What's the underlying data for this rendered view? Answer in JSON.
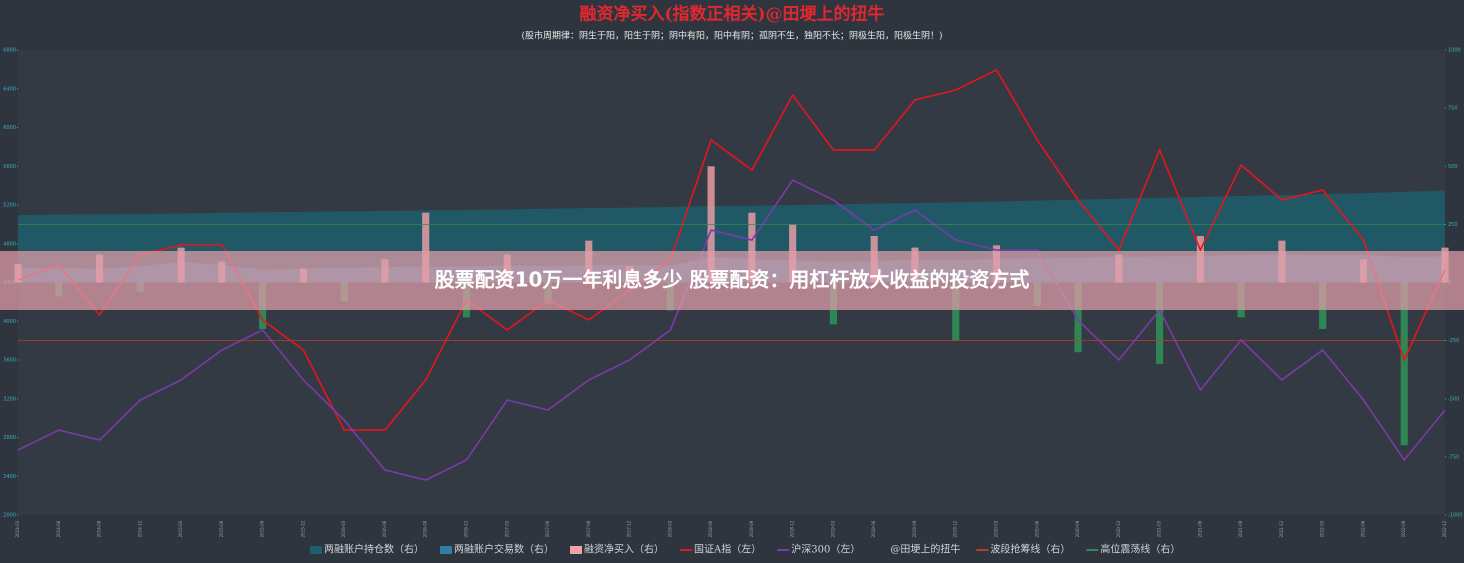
{
  "chart_data": {
    "type": "combo",
    "title": "融资净买入(指数正相关)@田埂上的扭牛",
    "subtitle": "(股市周期律：阴生于阳，阳生于阴；阴中有阳，阳中有阴；孤阴不生，独阳不长；阴极生阳，阳极生阴！)",
    "categories": [
      "2014-03",
      "2014-06",
      "2014-09",
      "2014-12",
      "2015-03",
      "2015-06",
      "2015-09",
      "2015-12",
      "2016-03",
      "2016-06",
      "2016-09",
      "2016-12",
      "2017-03",
      "2017-06",
      "2017-09",
      "2017-12",
      "2018-03",
      "2018-06",
      "2018-09",
      "2018-12",
      "2019-03",
      "2019-06",
      "2019-09",
      "2019-12",
      "2020-03",
      "2020-06",
      "2020-09",
      "2020-12",
      "2021-03",
      "2021-06",
      "2021-09",
      "2021-12",
      "2022-03",
      "2022-06",
      "2022-09",
      "2022-12"
    ],
    "ylim": [
      2000,
      6800
    ],
    "yticks": [
      2000,
      2400,
      2800,
      3200,
      3600,
      4000,
      4400,
      4800,
      5200,
      5600,
      6000,
      6400,
      6800
    ],
    "y2lim": [
      -1000,
      1000
    ],
    "y2ticks": [
      -1000,
      -750,
      -500,
      -250,
      0,
      250,
      500,
      750,
      1000
    ],
    "grid": false,
    "series": [
      {
        "name": "两融账户持仓数（右）",
        "type": "area",
        "axis": "y2",
        "color": "#1f5e6c",
        "values": [
          290,
          292,
          293,
          295,
          297,
          300,
          302,
          304,
          306,
          308,
          310,
          312,
          314,
          317,
          320,
          322,
          325,
          328,
          330,
          333,
          336,
          339,
          342,
          345,
          348,
          352,
          356,
          360,
          364,
          368,
          372,
          376,
          380,
          384,
          390,
          395
        ]
      },
      {
        "name": "两融账户交易数（右）",
        "type": "area",
        "axis": "y2",
        "color": "#2e7fa6",
        "values": [
          60,
          62,
          58,
          70,
          90,
          75,
          55,
          60,
          64,
          66,
          68,
          70,
          72,
          70,
          74,
          76,
          72,
          110,
          100,
          95,
          90,
          92,
          96,
          98,
          100,
          104,
          106,
          110,
          112,
          114,
          118,
          120,
          116,
          118,
          110,
          112
        ]
      },
      {
        "name": "融资净买入（右）",
        "type": "bar",
        "axis": "y2",
        "color": "#f4a0a8",
        "negative_color": "#2e9a5a",
        "values": [
          80,
          -60,
          120,
          -40,
          150,
          90,
          -200,
          60,
          -80,
          100,
          300,
          -150,
          120,
          -90,
          180,
          70,
          -120,
          500,
          300,
          250,
          -180,
          200,
          150,
          -250,
          160,
          -100,
          -300,
          120,
          -350,
          200,
          -150,
          180,
          -200,
          100,
          -700,
          150
        ]
      },
      {
        "name": "国证A指（左）",
        "type": "line",
        "color": "#e8141c",
        "values": [
          4426,
          4581,
          4065,
          4684,
          4787,
          4787,
          4013,
          3703,
          2877,
          2877,
          3394,
          4219,
          3910,
          4219,
          4013,
          4323,
          4632,
          5871,
          5561,
          6335,
          5768,
          5768,
          6284,
          6387,
          6594,
          5871,
          5252,
          4735,
          5768,
          4735,
          5613,
          5252,
          5355,
          4839,
          3600,
          4529
        ]
      },
      {
        "name": "沪深300（左）",
        "type": "line",
        "color": "#7a3aa8",
        "values": [
          2671,
          2877,
          2774,
          3187,
          3394,
          3703,
          3910,
          3394,
          2980,
          2464,
          2361,
          2568,
          3187,
          3084,
          3394,
          3600,
          3910,
          4941,
          4838,
          5457,
          5251,
          4941,
          5148,
          4838,
          4735,
          4735,
          4012,
          3600,
          4116,
          3290,
          3806,
          3394,
          3703,
          3187,
          2568,
          3084
        ]
      },
      {
        "name": "@田埂上的扭牛",
        "type": "none",
        "color": "#8a8f96"
      },
      {
        "name": "波段抢筹线（右）",
        "type": "hline",
        "axis": "y2",
        "color": "#c0392b",
        "value": -250
      },
      {
        "name": "高位震荡线（右）",
        "type": "hline",
        "axis": "y2",
        "color": "#2e8b57",
        "value": 250
      }
    ]
  },
  "overlay": {
    "text": "股票配资10万一年利息多少 股票配资：用杠杆放大收益的投资方式"
  }
}
